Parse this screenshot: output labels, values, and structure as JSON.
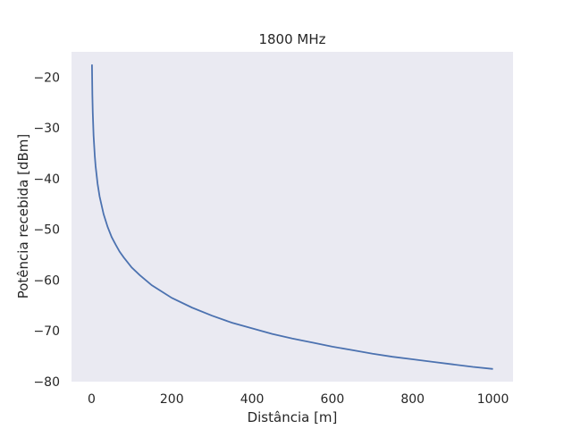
{
  "chart_data": {
    "type": "line",
    "title": "1800 MHz",
    "xlabel": "Distância [m]",
    "ylabel": "Potência recebida [dBm]",
    "xlim": [
      -50,
      1050
    ],
    "ylim": [
      -80,
      -15
    ],
    "xticks": [
      0,
      200,
      400,
      600,
      800,
      1000
    ],
    "yticks": [
      -80,
      -70,
      -60,
      -50,
      -40,
      -30,
      -20
    ],
    "xtick_labels": [
      "0",
      "200",
      "400",
      "600",
      "800",
      "1000"
    ],
    "ytick_labels": [
      "−80",
      "−70",
      "−60",
      "−50",
      "−40",
      "−30",
      "−20"
    ],
    "grid": false,
    "colors": {
      "background": "#eaeaf2",
      "line": "#4c72b0"
    },
    "series": [
      {
        "x": [
          1,
          2,
          3,
          5,
          8,
          10,
          15,
          20,
          30,
          40,
          50,
          60,
          70,
          80,
          100,
          120,
          150,
          200,
          250,
          300,
          350,
          400,
          450,
          500,
          550,
          600,
          650,
          700,
          750,
          800,
          850,
          900,
          950,
          1000
        ],
        "values": [
          -17.5,
          -23.5,
          -27.0,
          -31.5,
          -35.5,
          -37.5,
          -41.0,
          -43.5,
          -47.0,
          -49.5,
          -51.5,
          -53.0,
          -54.4,
          -55.5,
          -57.5,
          -59.0,
          -61.0,
          -63.5,
          -65.4,
          -67.0,
          -68.4,
          -69.5,
          -70.6,
          -71.5,
          -72.3,
          -73.1,
          -73.8,
          -74.5,
          -75.1,
          -75.6,
          -76.1,
          -76.6,
          -77.1,
          -77.5
        ]
      }
    ]
  }
}
